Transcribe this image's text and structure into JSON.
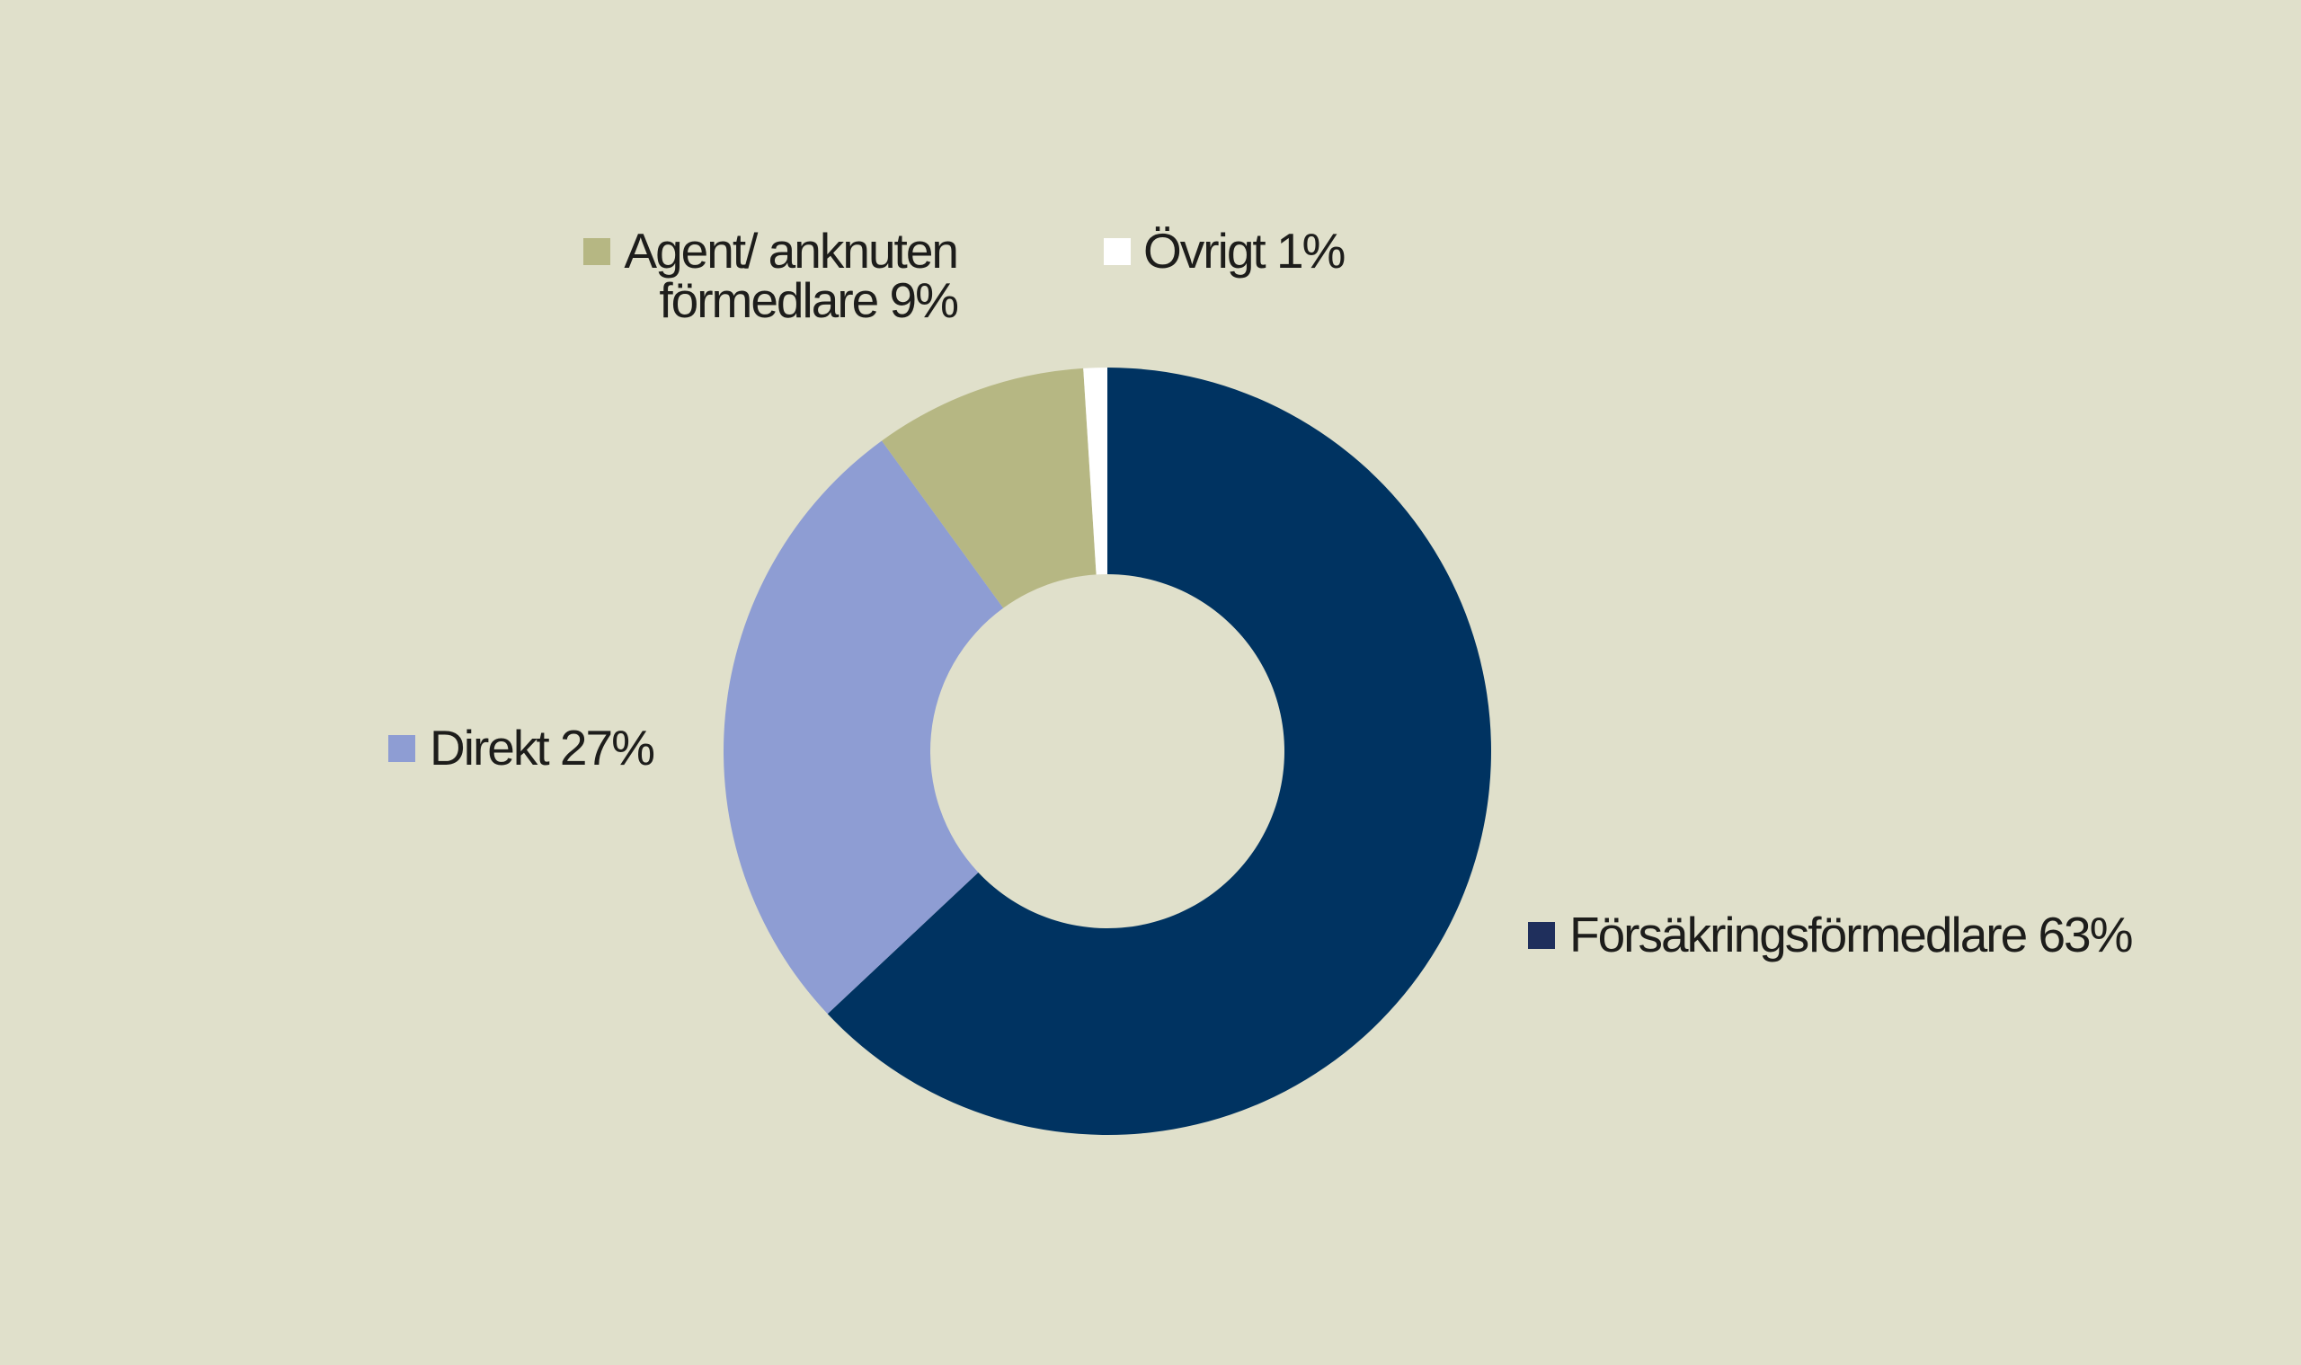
{
  "chart_data": {
    "type": "pie",
    "donut": true,
    "background": "#e0e0cb",
    "slices": [
      {
        "label": "Försäkringsförmedlare 63%",
        "value": 63,
        "color": "#003361"
      },
      {
        "label": "Direkt 27%",
        "value": 27,
        "color": "#8e9dd3"
      },
      {
        "label": "Agent/ anknuten förmedlare 9%",
        "label_lines": [
          "Agent/ anknuten",
          "förmedlare 9%"
        ],
        "value": 9,
        "color": "#b6b783"
      },
      {
        "label": "Övrigt 1%",
        "value": 1,
        "color": "#ffffff"
      }
    ]
  },
  "legend": {
    "forsakring": "Försäkringsförmedlare 63%",
    "direkt": "Direkt 27%",
    "agent_line1": "Agent/ anknuten",
    "agent_line2": "förmedlare 9%",
    "ovrigt": "Övrigt 1%"
  }
}
